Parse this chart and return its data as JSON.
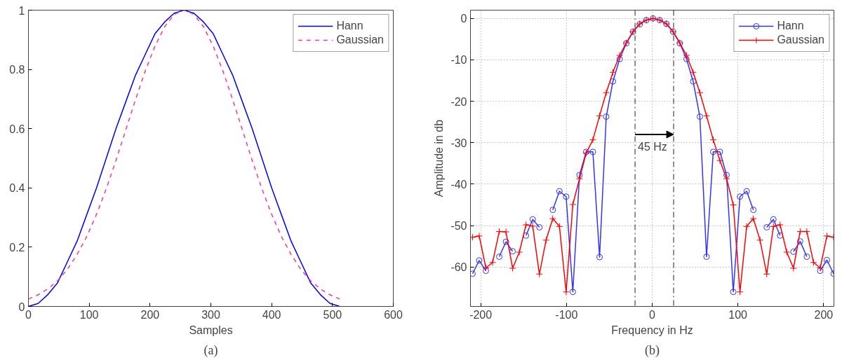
{
  "chart_data": [
    {
      "type": "line",
      "xlabel": "Samples",
      "annotations": [
        "(a)"
      ],
      "xlim": [
        0,
        600
      ],
      "ylim": [
        0,
        1
      ],
      "xticks": [
        0,
        100,
        200,
        300,
        400,
        500,
        600
      ],
      "yticks": [
        0,
        0.2,
        0.4,
        0.6,
        0.8,
        1
      ],
      "grid": false,
      "legend": "top right",
      "x": [
        0,
        16,
        32,
        48,
        64,
        80,
        96,
        112,
        128,
        144,
        160,
        176,
        192,
        208,
        224,
        240,
        256,
        272,
        288,
        304,
        320,
        336,
        352,
        368,
        384,
        400,
        416,
        432,
        448,
        464,
        480,
        496,
        512
      ],
      "series": [
        {
          "name": "Hann",
          "color": "#0000ff",
          "line_style": "solid",
          "values": [
            0,
            0.01,
            0.04,
            0.08,
            0.15,
            0.22,
            0.31,
            0.4,
            0.5,
            0.6,
            0.69,
            0.78,
            0.85,
            0.92,
            0.96,
            0.99,
            1,
            0.99,
            0.96,
            0.92,
            0.85,
            0.78,
            0.69,
            0.6,
            0.5,
            0.4,
            0.31,
            0.22,
            0.15,
            0.08,
            0.04,
            0.01,
            0
          ]
        },
        {
          "name": "Gaussian",
          "color": "#ff3399",
          "line_style": "dashed",
          "values": [
            0.025,
            0.039,
            0.059,
            0.087,
            0.125,
            0.175,
            0.236,
            0.311,
            0.397,
            0.493,
            0.595,
            0.697,
            0.794,
            0.878,
            0.944,
            0.986,
            1,
            0.986,
            0.944,
            0.878,
            0.794,
            0.697,
            0.595,
            0.493,
            0.397,
            0.311,
            0.236,
            0.175,
            0.125,
            0.087,
            0.059,
            0.039,
            0.025
          ]
        }
      ]
    },
    {
      "type": "line",
      "xlabel": "Frequency in Hz",
      "ylabel": "Amplitude in db",
      "annotations": [
        {
          "text": "45 Hz",
          "x": -20,
          "y": -28
        },
        "(b)"
      ],
      "xlim": [
        -212,
        212
      ],
      "ylim": [
        -69.5,
        2
      ],
      "xticks": [
        -200,
        -100,
        0,
        100,
        200
      ],
      "yticks": [
        -60,
        -50,
        -40,
        -30,
        -20,
        -10,
        0
      ],
      "grid": true,
      "legend": "top right",
      "ref_lines": [
        {
          "axis": "x",
          "value": -20,
          "label": null,
          "color": "#555555",
          "line_style": "dashed"
        },
        {
          "axis": "x",
          "value": 25,
          "label": null,
          "color": "#555555",
          "line_style": "dashed"
        }
      ],
      "x": [
        -209.6,
        -201.8,
        -194,
        -186.2,
        -178.4,
        -170.6,
        -162.8,
        -155,
        -147.2,
        -139.4,
        -131.6,
        -123.8,
        -116,
        -108.2,
        -100.4,
        -92.6,
        -84.8,
        -77,
        -69.2,
        -61.4,
        -53.6,
        -45.8,
        -38,
        -30.2,
        -22.4,
        -14.6,
        -6.8,
        1,
        8.8,
        16.6,
        24.4,
        32.2,
        40,
        47.8,
        55.6,
        63.4,
        71.2,
        79,
        86.8,
        94.6,
        102.4,
        110.2,
        118,
        125.8,
        133.6,
        141.4,
        149.2,
        157,
        164.8,
        172.6,
        180.4,
        188.2,
        196,
        203.8,
        211.6
      ],
      "series": [
        {
          "name": "Hann",
          "color": "#3333ff",
          "marker": "circle",
          "line_style": "solid",
          "values": [
            -61.6,
            -58.4,
            -60.9,
            null,
            -57.5,
            -53.9,
            -56.2,
            null,
            -52.4,
            -48.5,
            -50.4,
            null,
            -46.2,
            -41.7,
            -43,
            -66,
            -37.8,
            -32.2,
            -32.2,
            -57.6,
            -23.7,
            -15.2,
            -9.8,
            -6,
            -3.2,
            -1.4,
            -0.4,
            0,
            -0.4,
            -1.3,
            -3.2,
            -6,
            -9.8,
            -15.2,
            -23.7,
            -57.5,
            -32.2,
            -32.2,
            -37.8,
            -66,
            -43,
            -41.7,
            -46.2,
            null,
            -50.4,
            -48.5,
            -52.4,
            null,
            -56.3,
            -53.8,
            -57.5,
            null,
            -60.9,
            -58.3,
            -61.6
          ]
        },
        {
          "name": "Gaussian",
          "color": "#ff0000",
          "marker": "cross",
          "line_style": "solid",
          "values": [
            -52.8,
            -52.5,
            -60.2,
            -58.9,
            -51.4,
            -51.5,
            -60.3,
            -56.4,
            -49.8,
            -50.1,
            -61.7,
            -53.5,
            -48.3,
            -50.2,
            -66,
            -44.9,
            -38.7,
            -32.5,
            -29.3,
            -23.5,
            -17.9,
            -13,
            -8.9,
            -5.9,
            -3.2,
            -1.3,
            -0.4,
            0,
            -0.4,
            -1.3,
            -3.2,
            -5.9,
            -8.9,
            -13,
            -17.9,
            -23.5,
            -29.3,
            -34.3,
            -38.7,
            -45,
            -66,
            -50.2,
            -48.3,
            -53.5,
            -61.7,
            -50.2,
            -49.8,
            -56.4,
            -60.3,
            -51.4,
            -51.4,
            -58.9,
            -60.2,
            -52.5,
            -52.8
          ]
        }
      ]
    }
  ]
}
